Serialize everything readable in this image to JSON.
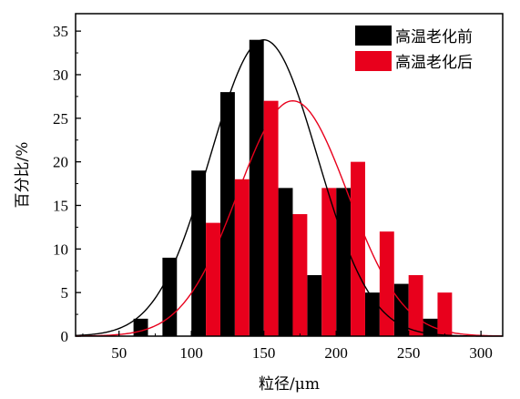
{
  "chart_data": {
    "type": "bar",
    "title": "",
    "xlabel": "粒径/μm",
    "ylabel": "百分比/%",
    "xlim": [
      20,
      315
    ],
    "ylim": [
      0,
      37
    ],
    "xticks": [
      50,
      100,
      150,
      200,
      250,
      300
    ],
    "yticks": [
      0,
      5,
      10,
      15,
      20,
      25,
      30,
      35
    ],
    "grid": false,
    "legend_position": "top-right",
    "bar_width": 10,
    "series": [
      {
        "name": "高温老化前",
        "color": "#000000",
        "x": [
          65,
          85,
          105,
          125,
          145,
          165,
          185,
          205,
          225,
          245,
          265
        ],
        "values": [
          2,
          9,
          19,
          28,
          34,
          17,
          7,
          17,
          5,
          6,
          2
        ],
        "fit_curve": {
          "type": "gaussian",
          "peak": 34,
          "center": 150,
          "sigma": 37,
          "color": "#000000"
        }
      },
      {
        "name": "高温老化后",
        "color": "#e8001c",
        "x": [
          115,
          135,
          155,
          175,
          195,
          215,
          235,
          255,
          275
        ],
        "values": [
          13,
          18,
          27,
          14,
          17,
          20,
          12,
          7,
          5
        ],
        "fit_curve": {
          "type": "gaussian",
          "peak": 27,
          "center": 170,
          "sigma": 38,
          "color": "#e8001c"
        }
      }
    ]
  }
}
